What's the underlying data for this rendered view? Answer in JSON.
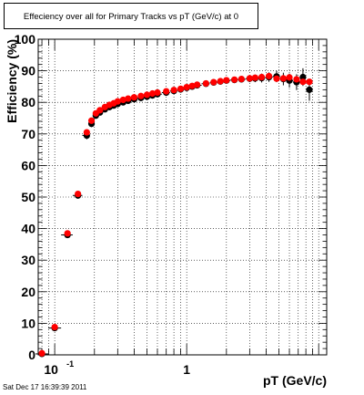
{
  "title": "Effeciency over all for Primary Tracks vs pT (GeV/c) at 0",
  "timestamp": "Sat Dec 17 16:39:39 2011",
  "chart_data": {
    "type": "scatter",
    "title": "Effeciency over all for Primary Tracks vs pT (GeV/c) at 0",
    "xlabel": "pT (GeV/c)",
    "ylabel": "Efficiency (%)",
    "xscale": "log",
    "xlim": [
      0.075,
      11.5
    ],
    "ylim": [
      0,
      100
    ],
    "grid": true,
    "x_tick_labels": [
      {
        "value": 0.1,
        "label": "10",
        "exp": "-1"
      },
      {
        "value": 1,
        "label": "1",
        "exp": ""
      }
    ],
    "y_ticks": [
      0,
      10,
      20,
      30,
      40,
      50,
      60,
      70,
      80,
      90,
      100
    ],
    "colors": {
      "series_black": "#000000",
      "series_red": "#ff0000",
      "grid": "#000000"
    },
    "series": [
      {
        "color": "#000000",
        "x": [
          0.08,
          0.1,
          0.125,
          0.15,
          0.175,
          0.19,
          0.205,
          0.22,
          0.24,
          0.26,
          0.28,
          0.3,
          0.33,
          0.36,
          0.4,
          0.45,
          0.5,
          0.55,
          0.6,
          0.7,
          0.8,
          0.9,
          1.0,
          1.1,
          1.2,
          1.4,
          1.6,
          1.8,
          2.0,
          2.3,
          2.6,
          3.0,
          3.3,
          3.7,
          4.2,
          4.8,
          5.4,
          6.0,
          6.8,
          7.6,
          8.5
        ],
        "y": [
          0.3,
          8.5,
          38.0,
          50.5,
          69.5,
          73.2,
          75.8,
          76.8,
          77.8,
          78.5,
          79.0,
          79.5,
          80.0,
          80.5,
          81.0,
          81.4,
          81.8,
          82.2,
          82.6,
          83.1,
          83.6,
          84.1,
          84.6,
          85.0,
          85.4,
          85.9,
          86.3,
          86.6,
          86.9,
          87.1,
          87.3,
          87.5,
          87.6,
          87.7,
          88.0,
          88.2,
          87.4,
          86.9,
          86.4,
          88.0,
          84.0
        ],
        "y_err": [
          0.3,
          0.5,
          0.8,
          1.0,
          1.2,
          1.0,
          0.8,
          0.7,
          0.6,
          0.5,
          0.4,
          0.4,
          0.4,
          0.4,
          0.4,
          0.4,
          0.4,
          0.4,
          0.4,
          0.4,
          0.4,
          0.4,
          0.5,
          0.5,
          0.5,
          0.6,
          0.6,
          0.7,
          0.8,
          0.9,
          1.0,
          1.1,
          1.2,
          1.4,
          1.5,
          1.8,
          2.0,
          2.2,
          2.5,
          2.8,
          3.5
        ]
      },
      {
        "color": "#ff0000",
        "x": [
          0.08,
          0.1,
          0.125,
          0.15,
          0.175,
          0.19,
          0.205,
          0.22,
          0.24,
          0.26,
          0.28,
          0.3,
          0.33,
          0.36,
          0.4,
          0.45,
          0.5,
          0.55,
          0.6,
          0.7,
          0.8,
          0.9,
          1.0,
          1.1,
          1.2,
          1.4,
          1.6,
          1.8,
          2.0,
          2.3,
          2.6,
          3.0,
          3.3,
          3.7,
          4.2,
          4.8,
          5.4,
          6.0,
          6.8,
          7.6,
          8.5
        ],
        "y": [
          0.5,
          8.8,
          38.5,
          51.0,
          70.5,
          74.2,
          76.5,
          77.5,
          78.5,
          79.2,
          79.7,
          80.3,
          80.8,
          81.2,
          81.6,
          82.0,
          82.4,
          82.8,
          83.1,
          83.5,
          83.9,
          84.3,
          84.8,
          85.2,
          85.6,
          86.0,
          86.4,
          86.7,
          87.0,
          87.2,
          87.4,
          87.6,
          87.8,
          88.0,
          88.3,
          87.5,
          87.6,
          87.9,
          87.3,
          86.5,
          86.5
        ]
      }
    ]
  }
}
